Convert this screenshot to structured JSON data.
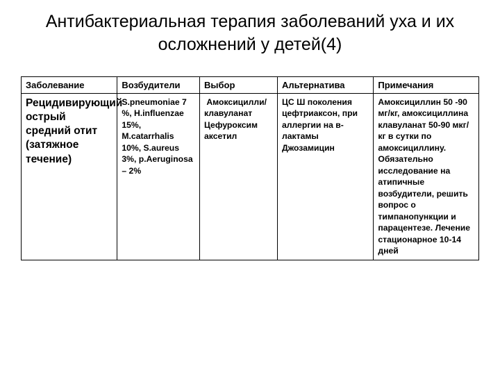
{
  "title": "Антибактериальная терапия заболеваний уха и их осложнений у детей(4)",
  "headers": {
    "disease": "Заболевание",
    "pathogens": "Возбудители",
    "choice": "Выбор",
    "alternative": "Альтернатива",
    "notes": "Примечания"
  },
  "rows": [
    {
      "disease": "Рецидивирующий острый средний отит (затяжное течение)",
      "pathogens": "S.pneumoniae 7 %, H.influenzae 15%, M.catarrhalis 10%, S.aureus 3%, p.Aeruginosa – 2%",
      "choice": " Амоксицилли/клавуланат Цефуроксим аксетил",
      "alternative": "ЦС Ш поколения цефтриаксон, при аллергии на в-лактамы Джозамицин",
      "notes": "Амоксициллин 50 -90 мг/кг, амоксициллина клавуланат 50-90 мкг/кг в сутки по амоксициллину. Обязательно исследование на атипичные возбудители, решить вопрос о тимпанопункции и парацентезе. Лечение стационарное 10-14 дней"
    }
  ]
}
